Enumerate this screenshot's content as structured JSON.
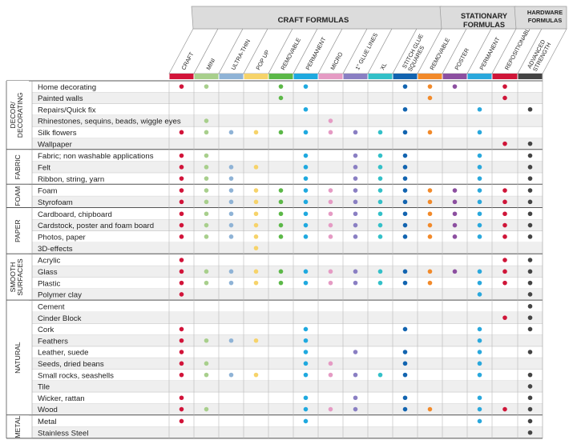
{
  "chart_data": {
    "type": "table",
    "group_headers": [
      {
        "label_lines": [
          "CRAFT FORMULAS"
        ]
      },
      {
        "label_lines": [
          "STATIONARY",
          "FORMULAS"
        ]
      },
      {
        "label_lines": [
          "HARDWARE",
          "FORMULAS"
        ]
      }
    ],
    "columns": [
      {
        "label_lines": [
          "CRAFT"
        ],
        "color": "#d2143a",
        "group": 0
      },
      {
        "label_lines": [
          "MINI"
        ],
        "color": "#a8cf8c",
        "group": 0
      },
      {
        "label_lines": [
          "ULTRA-THIN"
        ],
        "color": "#8fb3d6",
        "group": 0
      },
      {
        "label_lines": [
          "POP UP"
        ],
        "color": "#f6d36a",
        "group": 0
      },
      {
        "label_lines": [
          "REMOVABLE"
        ],
        "color": "#5cb848",
        "group": 0
      },
      {
        "label_lines": [
          "PERMANENT"
        ],
        "color": "#1fa9df",
        "group": 0
      },
      {
        "label_lines": [
          "MICRO"
        ],
        "color": "#e59bc4",
        "group": 0
      },
      {
        "label_lines": [
          "1\" GLUE LINES"
        ],
        "color": "#8a7fc3",
        "group": 0
      },
      {
        "label_lines": [
          "XL"
        ],
        "color": "#33c0c8",
        "group": 0
      },
      {
        "label_lines": [
          "STITCH GLUE",
          "SQUARES"
        ],
        "color": "#1264b0",
        "group": 0
      },
      {
        "label_lines": [
          "REMOVABLE"
        ],
        "color": "#f28a2a",
        "group": 1
      },
      {
        "label_lines": [
          "POSTER"
        ],
        "color": "#8c4fa0",
        "group": 1
      },
      {
        "label_lines": [
          "PERMANENT"
        ],
        "color": "#2aa8dc",
        "group": 1
      },
      {
        "label_lines": [
          "REPOSITIONABLE"
        ],
        "color": "#cf1538",
        "group": 2
      },
      {
        "label_lines": [
          "ADVANCED",
          "STRENGTH"
        ],
        "color": "#444444",
        "group": 2
      }
    ],
    "categories": [
      {
        "label_lines": [
          "DECOR/",
          "DECORATING"
        ],
        "rows": [
          {
            "label": "Home decorating",
            "values": [
              1,
              1,
              0,
              0,
              1,
              1,
              0,
              0,
              0,
              1,
              1,
              1,
              0,
              1,
              0
            ]
          },
          {
            "label": "Painted walls",
            "values": [
              0,
              0,
              0,
              0,
              1,
              0,
              0,
              0,
              0,
              0,
              1,
              0,
              0,
              1,
              0
            ]
          },
          {
            "label": "Repairs/Quick fix",
            "values": [
              0,
              0,
              0,
              0,
              0,
              1,
              0,
              0,
              0,
              1,
              0,
              0,
              1,
              0,
              1
            ]
          },
          {
            "label": "Rhinestones, sequins, beads, wiggle eyes",
            "values": [
              0,
              1,
              0,
              0,
              0,
              0,
              1,
              0,
              0,
              0,
              0,
              0,
              0,
              0,
              0
            ]
          },
          {
            "label": "Silk flowers",
            "values": [
              1,
              1,
              1,
              1,
              1,
              1,
              1,
              1,
              1,
              1,
              1,
              0,
              1,
              0,
              0
            ]
          },
          {
            "label": "Wallpaper",
            "values": [
              0,
              0,
              0,
              0,
              0,
              0,
              0,
              0,
              0,
              0,
              0,
              0,
              0,
              1,
              1
            ]
          }
        ]
      },
      {
        "label_lines": [
          "FABRIC"
        ],
        "rows": [
          {
            "label": "Fabric; non washable applications",
            "values": [
              1,
              1,
              0,
              0,
              0,
              1,
              0,
              1,
              1,
              1,
              0,
              0,
              1,
              0,
              1
            ]
          },
          {
            "label": "Felt",
            "values": [
              1,
              1,
              1,
              1,
              0,
              1,
              0,
              1,
              1,
              1,
              0,
              0,
              1,
              0,
              1
            ]
          },
          {
            "label": "Ribbon, string, yarn",
            "values": [
              1,
              1,
              1,
              0,
              0,
              1,
              0,
              1,
              1,
              1,
              0,
              0,
              1,
              0,
              1
            ]
          }
        ]
      },
      {
        "label_lines": [
          "FOAM"
        ],
        "rows": [
          {
            "label": "Foam",
            "values": [
              1,
              1,
              1,
              1,
              1,
              1,
              1,
              1,
              1,
              1,
              1,
              1,
              1,
              1,
              1
            ]
          },
          {
            "label": "Styrofoam",
            "values": [
              1,
              1,
              1,
              1,
              1,
              1,
              1,
              1,
              1,
              1,
              1,
              1,
              1,
              1,
              1
            ]
          }
        ]
      },
      {
        "label_lines": [
          "PAPER"
        ],
        "rows": [
          {
            "label": "Cardboard, chipboard",
            "values": [
              1,
              1,
              1,
              1,
              1,
              1,
              1,
              1,
              1,
              1,
              1,
              1,
              1,
              1,
              1
            ]
          },
          {
            "label": "Cardstock, poster and foam board",
            "values": [
              1,
              1,
              1,
              1,
              1,
              1,
              1,
              1,
              1,
              1,
              1,
              1,
              1,
              1,
              1
            ]
          },
          {
            "label": "Photos, paper",
            "values": [
              1,
              1,
              1,
              1,
              1,
              1,
              1,
              1,
              1,
              1,
              1,
              1,
              1,
              1,
              1
            ]
          },
          {
            "label": "3D-effects",
            "values": [
              0,
              0,
              0,
              1,
              0,
              0,
              0,
              0,
              0,
              0,
              0,
              0,
              0,
              0,
              0
            ]
          }
        ]
      },
      {
        "label_lines": [
          "SMOOTH",
          "SURFACES"
        ],
        "rows": [
          {
            "label": "Acrylic",
            "values": [
              1,
              0,
              0,
              0,
              0,
              0,
              0,
              0,
              0,
              0,
              0,
              0,
              0,
              1,
              1
            ]
          },
          {
            "label": "Glass",
            "values": [
              1,
              1,
              1,
              1,
              1,
              1,
              1,
              1,
              1,
              1,
              1,
              1,
              1,
              1,
              1
            ]
          },
          {
            "label": "Plastic",
            "values": [
              1,
              1,
              1,
              1,
              1,
              1,
              1,
              1,
              1,
              1,
              1,
              0,
              1,
              1,
              1
            ]
          },
          {
            "label": "Polymer clay",
            "values": [
              1,
              0,
              0,
              0,
              0,
              0,
              0,
              0,
              0,
              0,
              0,
              0,
              1,
              0,
              1
            ]
          }
        ]
      },
      {
        "label_lines": [
          "NATURAL"
        ],
        "rows": [
          {
            "label": "Cement",
            "values": [
              0,
              0,
              0,
              0,
              0,
              0,
              0,
              0,
              0,
              0,
              0,
              0,
              0,
              0,
              1
            ]
          },
          {
            "label": "Cinder Block",
            "values": [
              0,
              0,
              0,
              0,
              0,
              0,
              0,
              0,
              0,
              0,
              0,
              0,
              0,
              1,
              1
            ]
          },
          {
            "label": "Cork",
            "values": [
              1,
              0,
              0,
              0,
              0,
              1,
              0,
              0,
              0,
              1,
              0,
              0,
              1,
              0,
              1
            ]
          },
          {
            "label": "Feathers",
            "values": [
              1,
              1,
              1,
              1,
              0,
              1,
              0,
              0,
              0,
              0,
              0,
              0,
              1,
              0,
              0
            ]
          },
          {
            "label": "Leather, suede",
            "values": [
              1,
              0,
              0,
              0,
              0,
              1,
              0,
              1,
              0,
              1,
              0,
              0,
              1,
              0,
              1
            ]
          },
          {
            "label": "Seeds, dried beans",
            "values": [
              1,
              1,
              0,
              0,
              0,
              1,
              1,
              0,
              0,
              1,
              0,
              0,
              1,
              0,
              0
            ]
          },
          {
            "label": "Small rocks, seashells",
            "values": [
              1,
              1,
              1,
              1,
              0,
              1,
              1,
              1,
              1,
              1,
              0,
              0,
              1,
              0,
              1
            ]
          },
          {
            "label": "Tile",
            "values": [
              0,
              0,
              0,
              0,
              0,
              0,
              0,
              0,
              0,
              0,
              0,
              0,
              0,
              0,
              1
            ]
          },
          {
            "label": "Wicker, rattan",
            "values": [
              1,
              0,
              0,
              0,
              0,
              1,
              0,
              1,
              0,
              1,
              0,
              0,
              1,
              0,
              1
            ]
          },
          {
            "label": "Wood",
            "values": [
              1,
              1,
              0,
              0,
              0,
              1,
              1,
              1,
              0,
              1,
              1,
              0,
              1,
              1,
              1
            ]
          }
        ]
      },
      {
        "label_lines": [
          "METAL"
        ],
        "rows": [
          {
            "label": "Metal",
            "values": [
              1,
              0,
              0,
              0,
              0,
              1,
              0,
              0,
              0,
              0,
              0,
              0,
              1,
              0,
              1
            ]
          },
          {
            "label": "Stainless Steel",
            "values": [
              0,
              0,
              0,
              0,
              0,
              0,
              0,
              0,
              0,
              0,
              0,
              0,
              0,
              0,
              1
            ]
          }
        ]
      }
    ]
  }
}
